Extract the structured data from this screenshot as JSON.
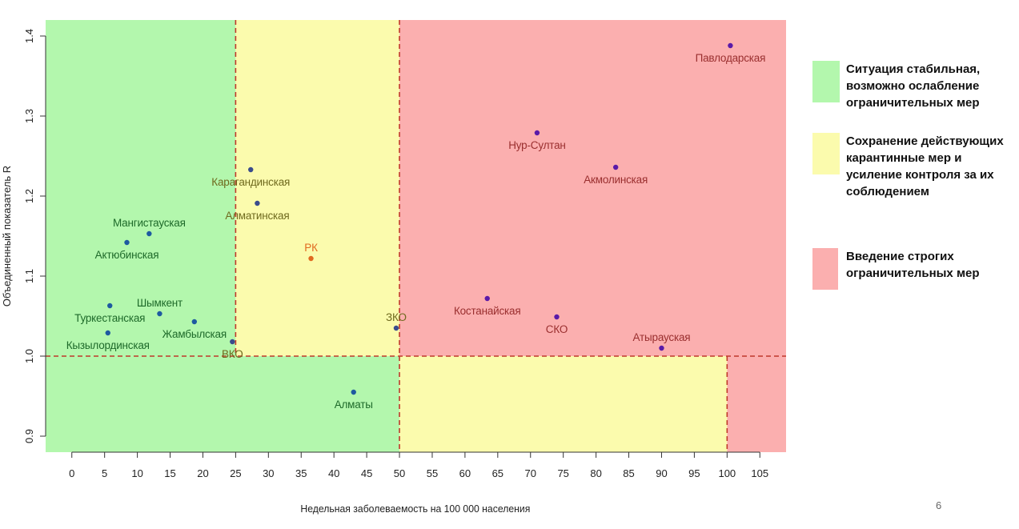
{
  "chart_data": {
    "type": "scatter",
    "xlabel": "Недельная заболеваемость на 100 000 населения",
    "ylabel": "Объединенный показатель R",
    "xlim": [
      -4,
      109
    ],
    "ylim": [
      0.88,
      1.42
    ],
    "x_ticks": [
      0,
      5,
      10,
      15,
      20,
      25,
      30,
      35,
      40,
      45,
      50,
      55,
      60,
      65,
      70,
      75,
      80,
      85,
      90,
      95,
      100,
      105
    ],
    "y_ticks": [
      0.9,
      1.0,
      1.1,
      1.2,
      1.3,
      1.4
    ],
    "grid": false,
    "legend_position": "right",
    "zones": [
      {
        "x": [
          -4,
          25
        ],
        "y": [
          1.0,
          1.42
        ],
        "color": "#b3f7ad"
      },
      {
        "x": [
          25,
          50
        ],
        "y": [
          1.0,
          1.42
        ],
        "color": "#fbfbad"
      },
      {
        "x": [
          50,
          109
        ],
        "y": [
          1.0,
          1.42
        ],
        "color": "#fbafaf"
      },
      {
        "x": [
          -4,
          50
        ],
        "y": [
          0.88,
          1.0
        ],
        "color": "#b3f7ad"
      },
      {
        "x": [
          50,
          100
        ],
        "y": [
          0.88,
          1.0
        ],
        "color": "#fbfbad"
      },
      {
        "x": [
          100,
          109
        ],
        "y": [
          0.88,
          1.0
        ],
        "color": "#fbafaf"
      }
    ],
    "reference_lines": [
      {
        "orientation": "vertical",
        "x": 25,
        "y": [
          1.0,
          1.42
        ]
      },
      {
        "orientation": "vertical",
        "x": 50,
        "y": [
          0.88,
          1.42
        ]
      },
      {
        "orientation": "vertical",
        "x": 100,
        "y": [
          0.88,
          1.0
        ]
      },
      {
        "orientation": "horizontal",
        "y": 1.0,
        "x": [
          -4,
          109
        ]
      }
    ],
    "points": [
      {
        "label": "Павлодарская",
        "x": 100.5,
        "y": 1.388,
        "color": "#5a1aa8",
        "label_color": "#9a2f2f",
        "label_pos": "below"
      },
      {
        "label": "Нур-Султан",
        "x": 71,
        "y": 1.279,
        "color": "#5a1aa8",
        "label_color": "#9a2f2f",
        "label_pos": "below"
      },
      {
        "label": "Акмолинская",
        "x": 83,
        "y": 1.236,
        "color": "#5a1aa8",
        "label_color": "#9a2f2f",
        "label_pos": "below"
      },
      {
        "label": "Карагандинская",
        "x": 27.3,
        "y": 1.233,
        "color": "#3a4c8c",
        "label_color": "#6f6a1e",
        "label_pos": "below"
      },
      {
        "label": "Алматинская",
        "x": 28.3,
        "y": 1.191,
        "color": "#3a4c8c",
        "label_color": "#6f6a1e",
        "label_pos": "below"
      },
      {
        "label": "Мангистауская",
        "x": 11.8,
        "y": 1.153,
        "color": "#1e5aa0",
        "label_color": "#1e6a2a",
        "label_pos": "above"
      },
      {
        "label": "Актюбинская",
        "x": 8.4,
        "y": 1.142,
        "color": "#1e5aa0",
        "label_color": "#1e6a2a",
        "label_pos": "below"
      },
      {
        "label": "РК",
        "x": 36.5,
        "y": 1.122,
        "color": "#e06a20",
        "label_color": "#e06a20",
        "label_pos": "above"
      },
      {
        "label": "Костанайская",
        "x": 63.4,
        "y": 1.072,
        "color": "#5a1aa8",
        "label_color": "#9a2f2f",
        "label_pos": "below"
      },
      {
        "label": "Туркестанская",
        "x": 5.8,
        "y": 1.063,
        "color": "#1e5aa0",
        "label_color": "#1e6a2a",
        "label_pos": "below"
      },
      {
        "label": "Шымкент",
        "x": 13.4,
        "y": 1.053,
        "color": "#1e5aa0",
        "label_color": "#1e6a2a",
        "label_pos": "above"
      },
      {
        "label": "СКО",
        "x": 74,
        "y": 1.049,
        "color": "#5a1aa8",
        "label_color": "#9a2f2f",
        "label_pos": "below"
      },
      {
        "label": "Жамбылская",
        "x": 18.7,
        "y": 1.043,
        "color": "#1e5aa0",
        "label_color": "#1e6a2a",
        "label_pos": "below"
      },
      {
        "label": "ЗКО",
        "x": 49.5,
        "y": 1.035,
        "color": "#3a4c8c",
        "label_color": "#6f6a1e",
        "label_pos": "above"
      },
      {
        "label": "Кызылординская",
        "x": 5.5,
        "y": 1.029,
        "color": "#1e5aa0",
        "label_color": "#1e6a2a",
        "label_pos": "below"
      },
      {
        "label": "ВКО",
        "x": 24.5,
        "y": 1.018,
        "color": "#3a4c8c",
        "label_color": "#6f6a1e",
        "label_pos": "below"
      },
      {
        "label": "Атырауская",
        "x": 90,
        "y": 1.01,
        "color": "#5a1aa8",
        "label_color": "#9a2f2f",
        "label_pos": "above"
      },
      {
        "label": "Алматы",
        "x": 43,
        "y": 0.955,
        "color": "#1e5aa0",
        "label_color": "#1e6a2a",
        "label_pos": "below"
      }
    ]
  },
  "legend": [
    {
      "text": "Ситуация стабильная, возможно ослабление ограничительных мер",
      "color": "#b3f7ad"
    },
    {
      "text": "Сохранение действующих карантинные мер и усиление контроля за их соблюдением",
      "color": "#fbfbad"
    },
    {
      "text": "Введение строгих ограничительных мер",
      "color": "#fbafaf"
    }
  ],
  "page_number": "6"
}
